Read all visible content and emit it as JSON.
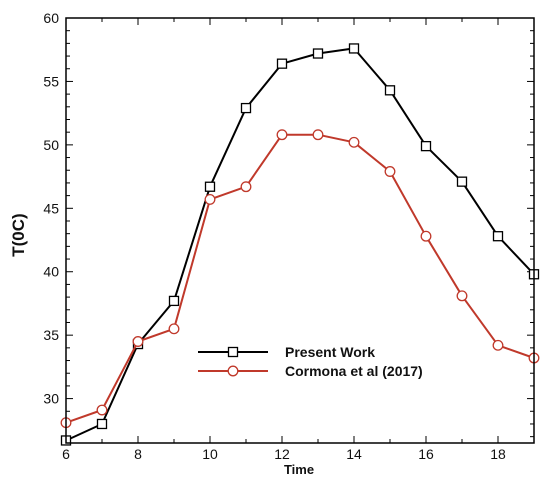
{
  "chart_data": {
    "type": "line",
    "title": "",
    "xlabel": "Time",
    "ylabel": "T(0C)",
    "xlim": [
      6,
      19
    ],
    "ylim": [
      26.5,
      60
    ],
    "xticks": [
      6,
      8,
      10,
      12,
      14,
      16,
      18
    ],
    "yticks": [
      30,
      35,
      40,
      45,
      50,
      55,
      60
    ],
    "grid": false,
    "legend_position": "center-bottom",
    "x": [
      6,
      7,
      8,
      9,
      10,
      11,
      12,
      13,
      14,
      15,
      16,
      17,
      18,
      19
    ],
    "series": [
      {
        "name": "Present Work",
        "color": "#000000",
        "marker": "square",
        "values": [
          26.7,
          28.0,
          34.3,
          37.7,
          46.7,
          52.9,
          56.4,
          57.2,
          57.6,
          54.3,
          49.9,
          47.1,
          42.8,
          39.8
        ]
      },
      {
        "name": "Cormona et al (2017)",
        "color": "#c0392b",
        "marker": "circle",
        "values": [
          28.1,
          29.1,
          34.5,
          35.5,
          45.7,
          46.7,
          50.8,
          50.8,
          50.2,
          47.9,
          42.8,
          38.1,
          34.2,
          33.2
        ]
      }
    ]
  }
}
